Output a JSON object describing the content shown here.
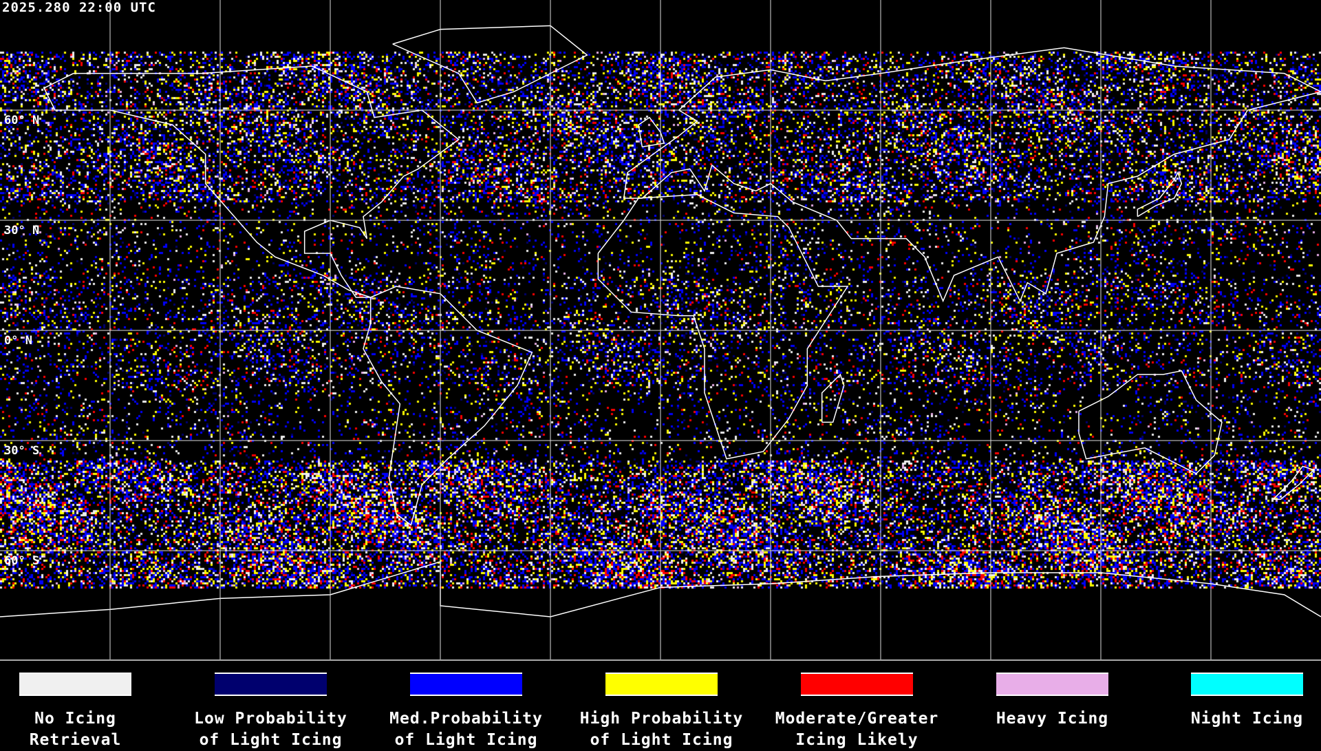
{
  "header": {
    "timestamp": "2025.280 22:00 UTC"
  },
  "map": {
    "projection": "equirectangular",
    "grid_spacing_degrees": 30,
    "lat_labels": [
      "60° N",
      "30° N",
      "0° N",
      "30° S",
      "60° S"
    ]
  },
  "legend": {
    "items": [
      {
        "line1": "No Icing",
        "line2": "Retrieval",
        "color": "#f0f0f0"
      },
      {
        "line1": "Low Probability",
        "line2": "of Light Icing",
        "color": "#00006e"
      },
      {
        "line1": "Med.Probability",
        "line2": "of Light Icing",
        "color": "#0000ff"
      },
      {
        "line1": "High Probability",
        "line2": "of Light Icing",
        "color": "#ffff00"
      },
      {
        "line1": "Moderate/Greater",
        "line2": "Icing Likely",
        "color": "#ff0000"
      },
      {
        "line1": "Heavy Icing",
        "line2": "",
        "color": "#e8aee8"
      },
      {
        "line1": "Night Icing",
        "line2": "",
        "color": "#00ffff"
      }
    ]
  }
}
